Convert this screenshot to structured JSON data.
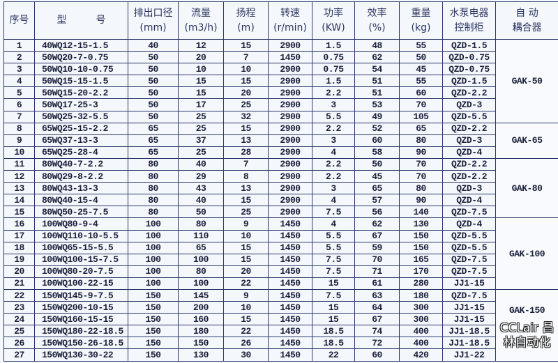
{
  "headers": [
    {
      "line1": "序号",
      "line2": ""
    },
    {
      "line1": "型　　　号",
      "line2": ""
    },
    {
      "line1": "排出口径",
      "line2": "(mm)"
    },
    {
      "line1": "流量",
      "line2": "(m3/h)"
    },
    {
      "line1": "扬程",
      "line2": "(m)"
    },
    {
      "line1": "转速",
      "line2": "(r/min)"
    },
    {
      "line1": "功率",
      "line2": "(KW)"
    },
    {
      "line1": "效率",
      "line2": "(%)"
    },
    {
      "line1": "重量",
      "line2": "(kg)"
    },
    {
      "line1": "水泵电器",
      "line2": "控制柜"
    },
    {
      "line1": "自 动",
      "line2": "耦合器"
    }
  ],
  "rows": [
    [
      "1",
      "40WQ12-15-1.5",
      "40",
      "12",
      "15",
      "2900",
      "1.5",
      "48",
      "55",
      "QZD-1.5"
    ],
    [
      "2",
      "50WQ20-7-0.75",
      "50",
      "20",
      "7",
      "1450",
      "0.75",
      "62",
      "50",
      "QZD-0.75"
    ],
    [
      "3",
      "50WQ10-10-0.75",
      "50",
      "10",
      "10",
      "2900",
      "0.75",
      "54",
      "45",
      "QZD-0.75"
    ],
    [
      "4",
      "50WQ15-15-1.5",
      "50",
      "15",
      "15",
      "2900",
      "1.5",
      "51",
      "55",
      "QZD-1.5"
    ],
    [
      "5",
      "50WQ15-20-2.2",
      "50",
      "15",
      "20",
      "2900",
      "2.2",
      "51",
      "60",
      "QZD-2.2"
    ],
    [
      "6",
      "50WQ17-25-3",
      "50",
      "17",
      "25",
      "2900",
      "3",
      "53",
      "70",
      "QZD-3"
    ],
    [
      "7",
      "50WQ25-32-5.5",
      "50",
      "25",
      "32",
      "2900",
      "5.5",
      "49",
      "105",
      "QZD-5.5"
    ],
    [
      "8",
      "65WQ25-15-2.2",
      "65",
      "25",
      "15",
      "2900",
      "2.2",
      "52",
      "65",
      "QZD-2.2"
    ],
    [
      "9",
      "65WQ37-13-3",
      "65",
      "37",
      "13",
      "2900",
      "3",
      "60",
      "80",
      "QZD-3"
    ],
    [
      "10",
      "65WQ25-28-4",
      "65",
      "25",
      "28",
      "2900",
      "4",
      "58",
      "90",
      "QZD-4"
    ],
    [
      "11",
      "80WQ40-7-2.2",
      "80",
      "40",
      "7",
      "2900",
      "2.2",
      "50",
      "70",
      "QZD-2.2"
    ],
    [
      "12",
      "80WQ29-8-2.2",
      "80",
      "29",
      "8",
      "2900",
      "2.2",
      "45",
      "70",
      "QZD-2.2"
    ],
    [
      "13",
      "80WQ43-13-3",
      "80",
      "43",
      "13",
      "2900",
      "3",
      "65",
      "80",
      "QZD-3"
    ],
    [
      "14",
      "80WQ40-15-4",
      "80",
      "40",
      "15",
      "2900",
      "4",
      "57",
      "90",
      "QZD-4"
    ],
    [
      "15",
      "80WQ50-25-7.5",
      "80",
      "50",
      "25",
      "2900",
      "7.5",
      "56",
      "140",
      "QZD-7.5"
    ],
    [
      "16",
      "100WQ80-9-4",
      "100",
      "80",
      "9",
      "1450",
      "4",
      "62",
      "130",
      "QZD-4"
    ],
    [
      "17",
      "100WQ110-10-5.5",
      "100",
      "110",
      "10",
      "1450",
      "5.5",
      "67",
      "150",
      "QZD-5.5"
    ],
    [
      "18",
      "100WQ65-15-5.5",
      "100",
      "65",
      "15",
      "1450",
      "5.5",
      "59",
      "150",
      "QZD-5.5"
    ],
    [
      "19",
      "100WQ100-15-7.5",
      "100",
      "100",
      "15",
      "1450",
      "7.5",
      "70",
      "165",
      "QZD-7.5"
    ],
    [
      "20",
      "100WQ80-20-7.5",
      "100",
      "80",
      "20",
      "1450",
      "7.5",
      "71",
      "170",
      "QZD-7.5"
    ],
    [
      "21",
      "100WQ100-22-15",
      "100",
      "100",
      "22",
      "1450",
      "15",
      "61",
      "280",
      "JJ1-15"
    ],
    [
      "22",
      "150WQ145-9-7.5",
      "150",
      "145",
      "9",
      "1450",
      "7.5",
      "63",
      "180",
      "QZD-7.5"
    ],
    [
      "23",
      "150WQ200-10-15",
      "150",
      "200",
      "10",
      "1450",
      "15",
      "64",
      "300",
      "JJ1-15"
    ],
    [
      "24",
      "150WQ160-15-15",
      "150",
      "160",
      "15",
      "1450",
      "15",
      "67",
      "300",
      "JJ1-15"
    ],
    [
      "25",
      "150WQ180-22-18.5",
      "150",
      "180",
      "22",
      "1450",
      "18.5",
      "74",
      "400",
      "JJ1-18.5"
    ],
    [
      "26",
      "150WQ150-26-18.5",
      "150",
      "150",
      "26",
      "1450",
      "18.5",
      "72",
      "400",
      "JJ1-18.5"
    ],
    [
      "27",
      "150WQ130-30-22",
      "150",
      "130",
      "30",
      "1450",
      "22",
      "60",
      "420",
      "JJ1-22"
    ]
  ],
  "couplers": [
    {
      "label": "GAK-50",
      "rows": 7
    },
    {
      "label": "GAK-65",
      "rows": 3
    },
    {
      "label": "GAK-80",
      "rows": 5
    },
    {
      "label": "GAK-100",
      "rows": 6
    },
    {
      "label": "GAK-150",
      "rows": 6
    }
  ],
  "watermark": "CCLair 昌林自动化"
}
